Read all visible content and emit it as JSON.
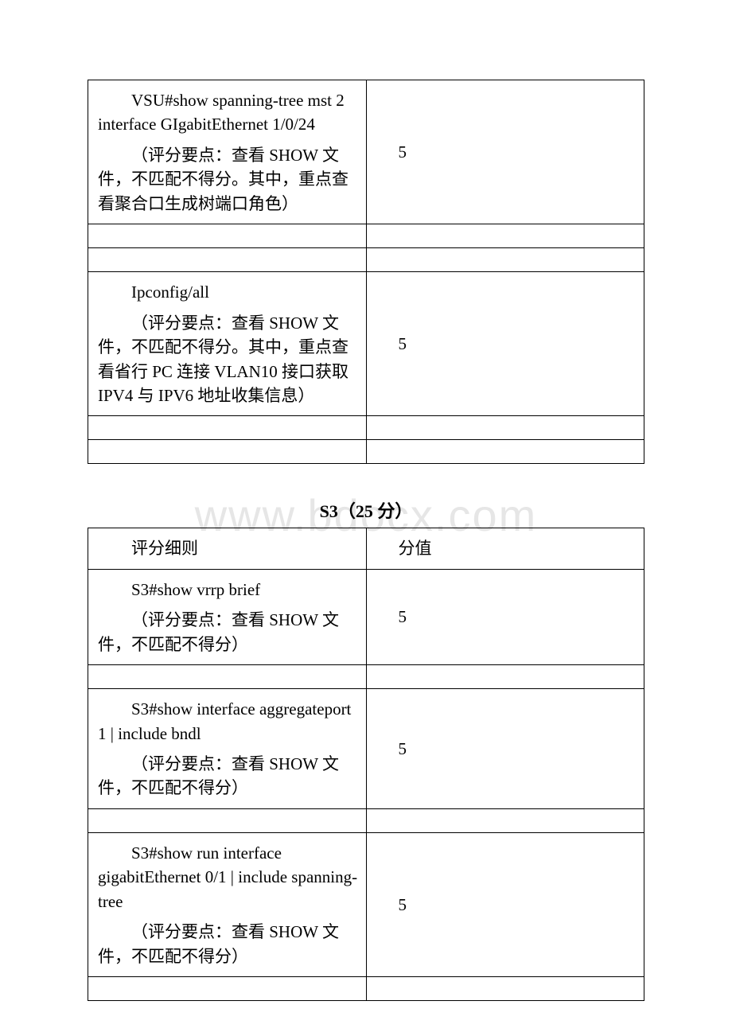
{
  "table1": {
    "rows": [
      {
        "left_lines": [
          "VSU#show spanning-tree mst 2 interface GIgabitEthernet 1/0/24",
          "（评分要点：查看 SHOW 文件，不匹配不得分。其中，重点查看聚合口生成树端口角色）"
        ],
        "right": "5"
      },
      {
        "left_lines": [
          "Ipconfig/all",
          "（评分要点：查看 SHOW 文件，不匹配不得分。其中，重点查看省行 PC 连接 VLAN10 接口获取 IPV4 与 IPV6 地址收集信息）"
        ],
        "right": "5"
      }
    ]
  },
  "section2": {
    "title": "S3（25 分）",
    "header": {
      "left": "评分细则",
      "right": "分值"
    },
    "rows": [
      {
        "left_lines": [
          "S3#show vrrp brief",
          "（评分要点：查看 SHOW 文件，不匹配不得分）"
        ],
        "right": "5"
      },
      {
        "left_lines": [
          "S3#show interface aggregateport 1 | include bndl",
          "（评分要点：查看 SHOW 文件，不匹配不得分）"
        ],
        "right": "5"
      },
      {
        "left_lines": [
          "S3#show run interface gigabitEthernet 0/1 | include spanning-tree",
          "（评分要点：查看 SHOW 文件，不匹配不得分）"
        ],
        "right": "5"
      }
    ]
  },
  "watermark_text": "www.bdocx.com",
  "colors": {
    "border": "#000000",
    "text": "#000000",
    "background": "#ffffff",
    "watermark": "#e6e6e6"
  }
}
